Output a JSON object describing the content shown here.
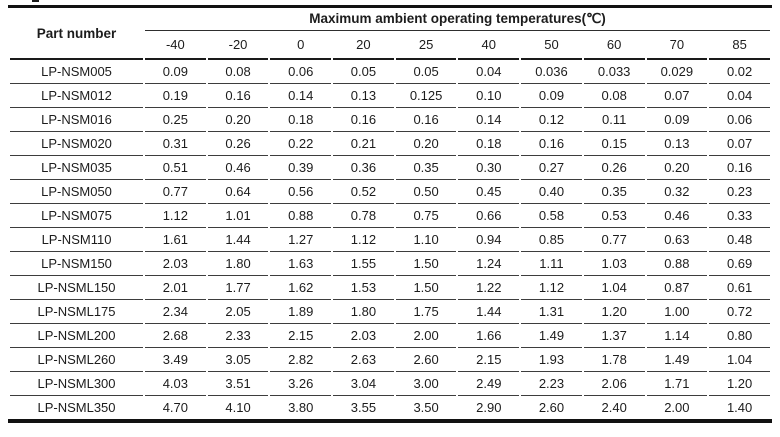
{
  "table": {
    "part_number_header": "Part number",
    "title": "Maximum ambient operating temperatures(℃)",
    "temp_columns": [
      "-40",
      "-20",
      "0",
      "20",
      "25",
      "40",
      "50",
      "60",
      "70",
      "85"
    ],
    "rows": [
      {
        "part": "LP-NSM005",
        "values": [
          "0.09",
          "0.08",
          "0.06",
          "0.05",
          "0.05",
          "0.04",
          "0.036",
          "0.033",
          "0.029",
          "0.02"
        ]
      },
      {
        "part": "LP-NSM012",
        "values": [
          "0.19",
          "0.16",
          "0.14",
          "0.13",
          "0.125",
          "0.10",
          "0.09",
          "0.08",
          "0.07",
          "0.04"
        ]
      },
      {
        "part": "LP-NSM016",
        "values": [
          "0.25",
          "0.20",
          "0.18",
          "0.16",
          "0.16",
          "0.14",
          "0.12",
          "0.11",
          "0.09",
          "0.06"
        ]
      },
      {
        "part": "LP-NSM020",
        "values": [
          "0.31",
          "0.26",
          "0.22",
          "0.21",
          "0.20",
          "0.18",
          "0.16",
          "0.15",
          "0.13",
          "0.07"
        ]
      },
      {
        "part": "LP-NSM035",
        "values": [
          "0.51",
          "0.46",
          "0.39",
          "0.36",
          "0.35",
          "0.30",
          "0.27",
          "0.26",
          "0.20",
          "0.16"
        ]
      },
      {
        "part": "LP-NSM050",
        "values": [
          "0.77",
          "0.64",
          "0.56",
          "0.52",
          "0.50",
          "0.45",
          "0.40",
          "0.35",
          "0.32",
          "0.23"
        ]
      },
      {
        "part": "LP-NSM075",
        "values": [
          "1.12",
          "1.01",
          "0.88",
          "0.78",
          "0.75",
          "0.66",
          "0.58",
          "0.53",
          "0.46",
          "0.33"
        ]
      },
      {
        "part": "LP-NSM110",
        "values": [
          "1.61",
          "1.44",
          "1.27",
          "1.12",
          "1.10",
          "0.94",
          "0.85",
          "0.77",
          "0.63",
          "0.48"
        ]
      },
      {
        "part": "LP-NSM150",
        "values": [
          "2.03",
          "1.80",
          "1.63",
          "1.55",
          "1.50",
          "1.24",
          "1.11",
          "1.03",
          "0.88",
          "0.69"
        ]
      },
      {
        "part": "LP-NSML150",
        "values": [
          "2.01",
          "1.77",
          "1.62",
          "1.53",
          "1.50",
          "1.22",
          "1.12",
          "1.04",
          "0.87",
          "0.61"
        ]
      },
      {
        "part": "LP-NSML175",
        "values": [
          "2.34",
          "2.05",
          "1.89",
          "1.80",
          "1.75",
          "1.44",
          "1.31",
          "1.20",
          "1.00",
          "0.72"
        ]
      },
      {
        "part": "LP-NSML200",
        "values": [
          "2.68",
          "2.33",
          "2.15",
          "2.03",
          "2.00",
          "1.66",
          "1.49",
          "1.37",
          "1.14",
          "0.80"
        ]
      },
      {
        "part": "LP-NSML260",
        "values": [
          "3.49",
          "3.05",
          "2.82",
          "2.63",
          "2.60",
          "2.15",
          "1.93",
          "1.78",
          "1.49",
          "1.04"
        ]
      },
      {
        "part": "LP-NSML300",
        "values": [
          "4.03",
          "3.51",
          "3.26",
          "3.04",
          "3.00",
          "2.49",
          "2.23",
          "2.06",
          "1.71",
          "1.20"
        ]
      },
      {
        "part": "LP-NSML350",
        "values": [
          "4.70",
          "4.10",
          "3.80",
          "3.55",
          "3.50",
          "2.90",
          "2.60",
          "2.40",
          "2.00",
          "1.40"
        ]
      }
    ]
  },
  "colors": {
    "text": "#1c1c1c",
    "thick_border": "#121212",
    "thin_border": "#3d3d3d"
  }
}
